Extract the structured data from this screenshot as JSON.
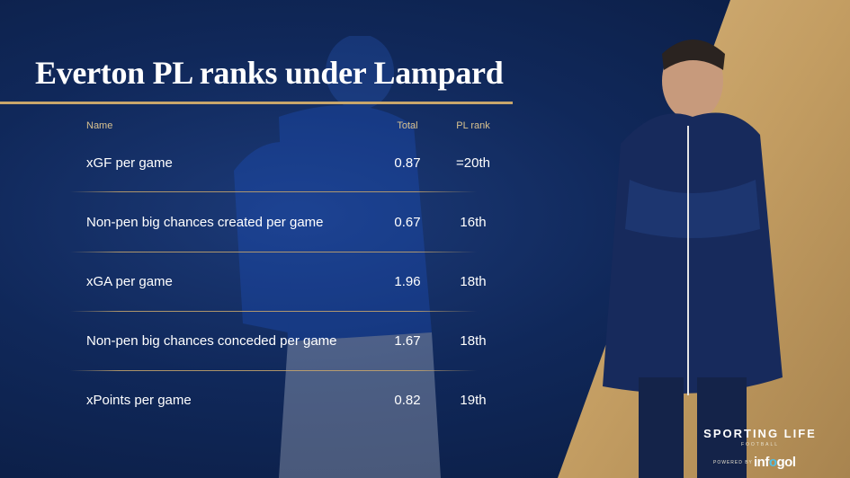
{
  "title": "Everton PL ranks under Lampard",
  "table": {
    "headers": {
      "name": "Name",
      "total": "Total",
      "rank": "PL rank"
    },
    "rows": [
      {
        "name": "xGF per game",
        "total": "0.87",
        "rank": "=20th"
      },
      {
        "name": "Non-pen big chances created per game",
        "total": "0.67",
        "rank": "16th"
      },
      {
        "name": "xGA per game",
        "total": "1.96",
        "rank": "18th"
      },
      {
        "name": "Non-pen big chances conceded per game",
        "total": "1.67",
        "rank": "18th"
      },
      {
        "name": "xPoints per game",
        "total": "0.82",
        "rank": "19th"
      }
    ]
  },
  "branding": {
    "name": "SPORTING LIFE",
    "sub": "FOOTBALL",
    "powered_by": "POWERED BY",
    "partner_prefix": "inf",
    "partner_accent": "o",
    "partner_suffix": "gol"
  },
  "colors": {
    "navy": "#10285a",
    "gold": "#c8a66b",
    "header_text": "#d9c28f"
  }
}
